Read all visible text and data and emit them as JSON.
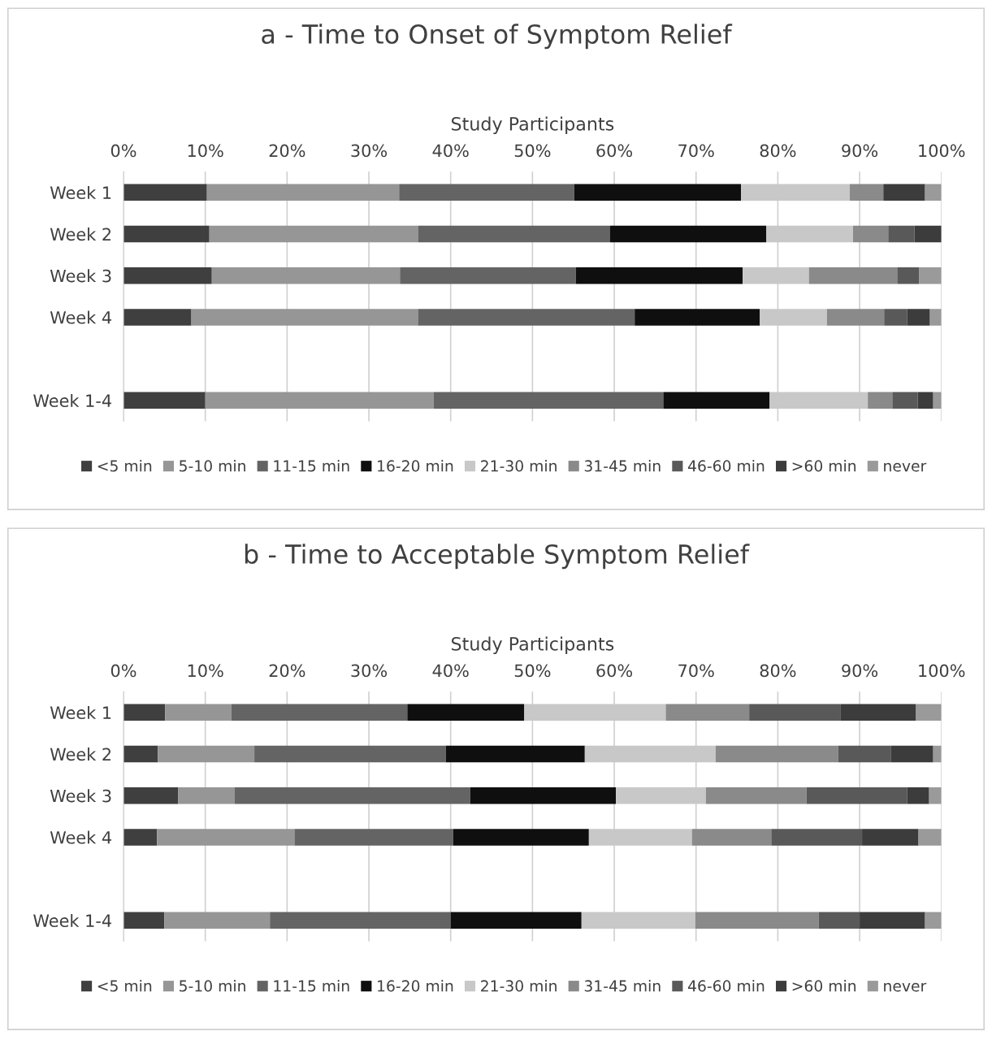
{
  "chart_data": [
    {
      "type": "bar",
      "orientation": "horizontal",
      "stacked": true,
      "title": "a - Time to Onset of Symptom Relief",
      "xlabel": "Study Participants",
      "categories": [
        "Week 1",
        "Week 2",
        "Week 3",
        "Week 4",
        null,
        "Week 1-4"
      ],
      "xlim": [
        0,
        100
      ],
      "xticks": [
        {
          "value": 0,
          "label": "0%"
        },
        {
          "value": 10,
          "label": "10%"
        },
        {
          "value": 20,
          "label": "20%"
        },
        {
          "value": 30,
          "label": "30%"
        },
        {
          "value": 40,
          "label": "40%"
        },
        {
          "value": 50,
          "label": "50%"
        },
        {
          "value": 60,
          "label": "60%"
        },
        {
          "value": 70,
          "label": "70%"
        },
        {
          "value": 80,
          "label": "80%"
        },
        {
          "value": 90,
          "label": "90%"
        },
        {
          "value": 100,
          "label": "100%"
        }
      ],
      "grid": "x",
      "legend": "bottom",
      "series": [
        {
          "name": "<5 min",
          "color": "#3f3f3f",
          "values": [
            10.2,
            10.5,
            10.8,
            8.3,
            null,
            10.0
          ]
        },
        {
          "name": "5-10 min",
          "color": "#969696",
          "values": [
            23.5,
            25.5,
            23.0,
            27.7,
            null,
            27.9
          ]
        },
        {
          "name": "11-15 min",
          "color": "#646464",
          "values": [
            21.4,
            23.5,
            21.5,
            26.5,
            null,
            28.1
          ]
        },
        {
          "name": "16-20 min",
          "color": "#0f0f0f",
          "values": [
            20.4,
            19.1,
            20.4,
            15.3,
            null,
            13.0
          ]
        },
        {
          "name": "21-30 min",
          "color": "#c8c8c8",
          "values": [
            13.3,
            10.6,
            8.1,
            8.2,
            null,
            12.0
          ]
        },
        {
          "name": "31-45 min",
          "color": "#8a8a8a",
          "values": [
            4.1,
            4.3,
            10.8,
            7.0,
            null,
            3.0
          ]
        },
        {
          "name": "46-60 min",
          "color": "#595959",
          "values": [
            0,
            3.2,
            2.7,
            2.8,
            null,
            3.1
          ]
        },
        {
          "name": ">60 min",
          "color": "#3c3c3c",
          "values": [
            5.1,
            3.3,
            0,
            2.8,
            null,
            1.9
          ]
        },
        {
          "name": "never",
          "color": "#9a9a9a",
          "values": [
            2.0,
            0,
            2.7,
            1.4,
            null,
            1.0
          ]
        }
      ]
    },
    {
      "type": "bar",
      "orientation": "horizontal",
      "stacked": true,
      "title": "b - Time to Acceptable Symptom Relief",
      "xlabel": "Study Participants",
      "categories": [
        "Week 1",
        "Week 2",
        "Week 3",
        "Week 4",
        null,
        "Week 1-4"
      ],
      "xlim": [
        0,
        100
      ],
      "xticks": [
        {
          "value": 0,
          "label": "0%"
        },
        {
          "value": 10,
          "label": "10%"
        },
        {
          "value": 20,
          "label": "20%"
        },
        {
          "value": 30,
          "label": "30%"
        },
        {
          "value": 40,
          "label": "40%"
        },
        {
          "value": 50,
          "label": "50%"
        },
        {
          "value": 60,
          "label": "60%"
        },
        {
          "value": 70,
          "label": "70%"
        },
        {
          "value": 80,
          "label": "80%"
        },
        {
          "value": 90,
          "label": "90%"
        },
        {
          "value": 100,
          "label": "100%"
        }
      ],
      "grid": "x",
      "legend": "bottom",
      "series": [
        {
          "name": "<5 min",
          "color": "#3f3f3f",
          "values": [
            5.1,
            4.2,
            6.7,
            4.1,
            null,
            5.0
          ]
        },
        {
          "name": "5-10 min",
          "color": "#969696",
          "values": [
            8.1,
            11.8,
            6.9,
            16.8,
            null,
            12.9
          ]
        },
        {
          "name": "11-15 min",
          "color": "#646464",
          "values": [
            21.5,
            23.4,
            28.8,
            19.4,
            null,
            22.1
          ]
        },
        {
          "name": "16-20 min",
          "color": "#0f0f0f",
          "values": [
            14.3,
            17.0,
            17.8,
            16.6,
            null,
            16.0
          ]
        },
        {
          "name": "21-30 min",
          "color": "#c8c8c8",
          "values": [
            17.3,
            16.0,
            11.0,
            12.6,
            null,
            13.9
          ]
        },
        {
          "name": "31-45 min",
          "color": "#8a8a8a",
          "values": [
            10.2,
            15.0,
            12.3,
            9.7,
            null,
            15.1
          ]
        },
        {
          "name": "46-60 min",
          "color": "#595959",
          "values": [
            11.2,
            6.4,
            12.3,
            11.1,
            null,
            5.0
          ]
        },
        {
          "name": ">60 min",
          "color": "#3c3c3c",
          "values": [
            9.2,
            5.2,
            2.7,
            6.9,
            null,
            8.0
          ]
        },
        {
          "name": "never",
          "color": "#9a9a9a",
          "values": [
            3.1,
            1.0,
            1.5,
            2.8,
            null,
            2.0
          ]
        }
      ]
    }
  ]
}
